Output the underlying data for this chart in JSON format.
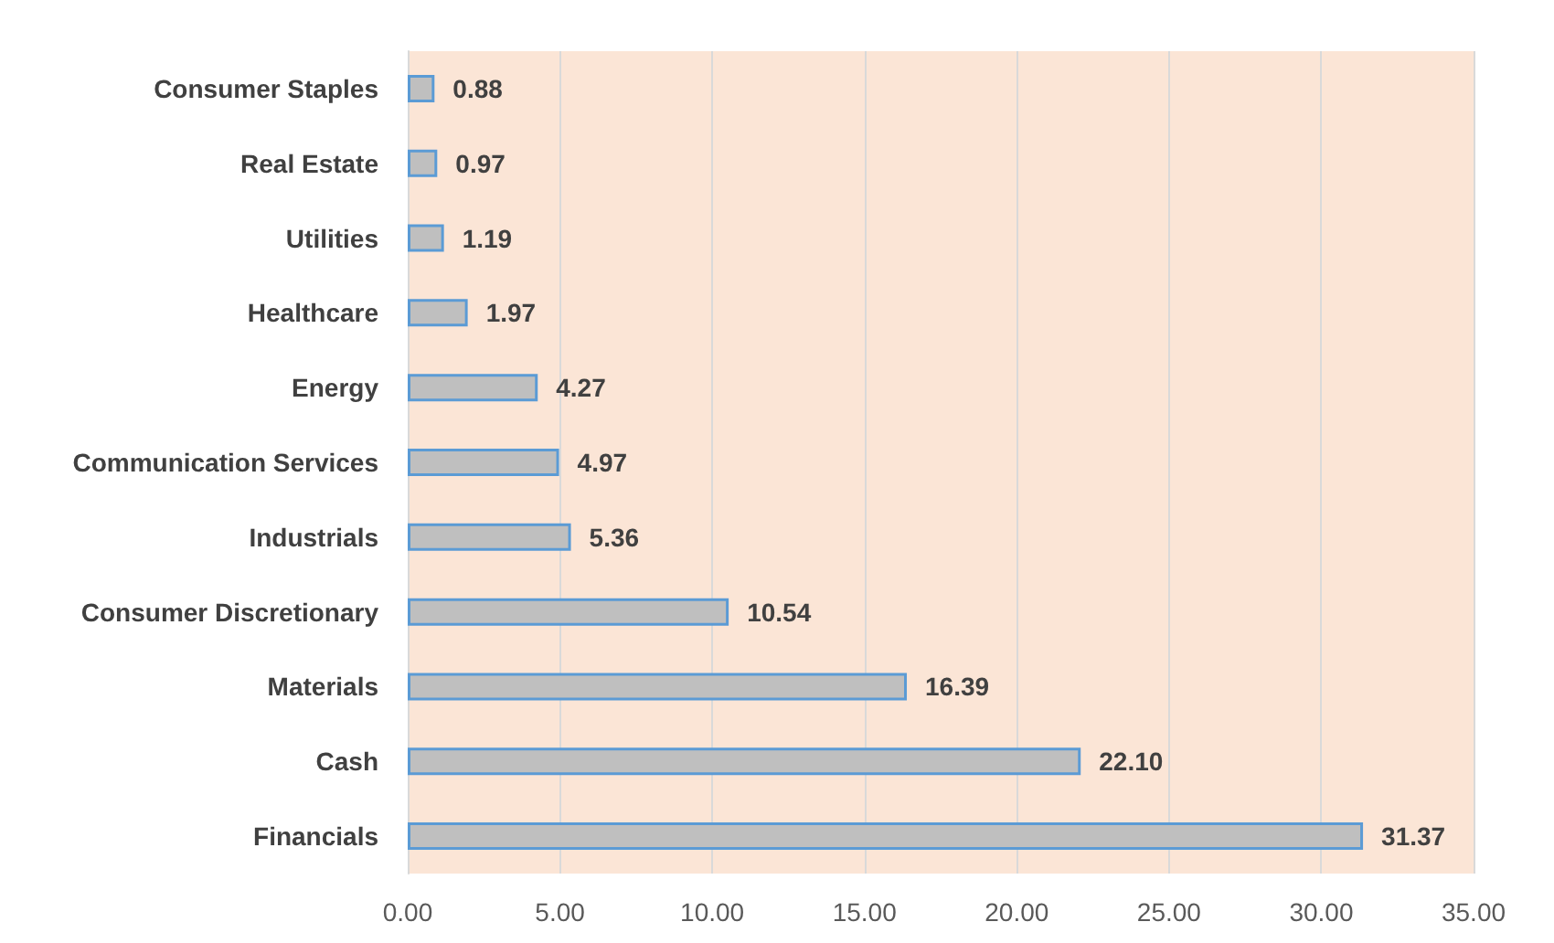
{
  "chart_data": {
    "type": "bar",
    "orientation": "horizontal",
    "categories": [
      "Consumer Staples",
      "Real Estate",
      "Utilities",
      "Healthcare",
      "Energy",
      "Communication Services",
      "Industrials",
      "Consumer Discretionary",
      "Materials",
      "Cash",
      "Financials"
    ],
    "values": [
      0.88,
      0.97,
      1.19,
      1.97,
      4.27,
      4.97,
      5.36,
      10.54,
      16.39,
      22.1,
      31.37
    ],
    "value_labels": [
      "0.88",
      "0.97",
      "1.19",
      "1.97",
      "4.27",
      "4.97",
      "5.36",
      "10.54",
      "16.39",
      "22.10",
      "31.37"
    ],
    "color": "#bfbfbf",
    "xlim": [
      0,
      35
    ],
    "xticks": [
      {
        "value": 0,
        "label": "0.00"
      },
      {
        "value": 5,
        "label": "5.00"
      },
      {
        "value": 10,
        "label": "10.00"
      },
      {
        "value": 15,
        "label": "15.00"
      },
      {
        "value": 20,
        "label": "20.00"
      },
      {
        "value": 25,
        "label": "25.00"
      },
      {
        "value": 30,
        "label": "30.00"
      },
      {
        "value": 35,
        "label": "35.00"
      }
    ],
    "grid": "x"
  }
}
